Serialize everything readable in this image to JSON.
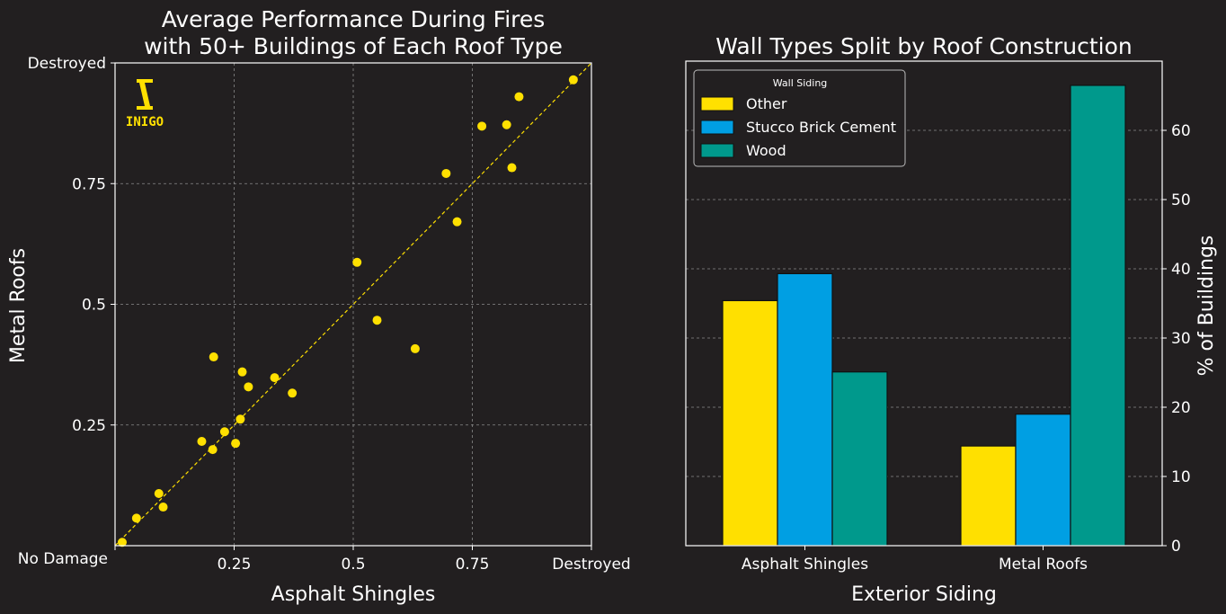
{
  "brand": {
    "logo_text": "INIGO",
    "accent": "#ffe000"
  },
  "chart_data": [
    {
      "type": "scatter",
      "title_lines": [
        "Average Performance During Fires",
        "with 50+ Buildings of Each Roof Type"
      ],
      "xlabel": "Asphalt Shingles",
      "ylabel": "Metal Roofs",
      "xlim": [
        0,
        1
      ],
      "ylim": [
        0,
        1
      ],
      "x_ticks": [
        {
          "value": 0,
          "label": "No Damage"
        },
        {
          "value": 0.25,
          "label": "0.25"
        },
        {
          "value": 0.5,
          "label": "0.5"
        },
        {
          "value": 0.75,
          "label": "0.75"
        },
        {
          "value": 1,
          "label": "Destroyed"
        }
      ],
      "y_ticks": [
        {
          "value": 0.25,
          "label": "0.25"
        },
        {
          "value": 0.5,
          "label": "0.5"
        },
        {
          "value": 0.75,
          "label": "0.75"
        },
        {
          "value": 1,
          "label": "Destroyed"
        }
      ],
      "grid": true,
      "reference_line": "y = x",
      "point_color": "#ffe000",
      "points": [
        {
          "x": 0.015,
          "y": 0.007
        },
        {
          "x": 0.045,
          "y": 0.057
        },
        {
          "x": 0.092,
          "y": 0.108
        },
        {
          "x": 0.101,
          "y": 0.08
        },
        {
          "x": 0.182,
          "y": 0.216
        },
        {
          "x": 0.205,
          "y": 0.199
        },
        {
          "x": 0.207,
          "y": 0.391
        },
        {
          "x": 0.23,
          "y": 0.236
        },
        {
          "x": 0.253,
          "y": 0.212
        },
        {
          "x": 0.263,
          "y": 0.262
        },
        {
          "x": 0.267,
          "y": 0.36
        },
        {
          "x": 0.28,
          "y": 0.329
        },
        {
          "x": 0.335,
          "y": 0.348
        },
        {
          "x": 0.372,
          "y": 0.316
        },
        {
          "x": 0.508,
          "y": 0.587
        },
        {
          "x": 0.55,
          "y": 0.467
        },
        {
          "x": 0.63,
          "y": 0.408
        },
        {
          "x": 0.695,
          "y": 0.771
        },
        {
          "x": 0.718,
          "y": 0.671
        },
        {
          "x": 0.77,
          "y": 0.869
        },
        {
          "x": 0.822,
          "y": 0.872
        },
        {
          "x": 0.833,
          "y": 0.783
        },
        {
          "x": 0.848,
          "y": 0.93
        },
        {
          "x": 0.962,
          "y": 0.965
        }
      ]
    },
    {
      "type": "bar",
      "title": "Wall Types Split by Roof Construction",
      "xlabel": "Exterior Siding",
      "ylabel": "% of Buildings",
      "categories": [
        "Asphalt Shingles",
        "Metal Roofs"
      ],
      "ylim": [
        0,
        70
      ],
      "y_ticks": [
        0,
        10,
        20,
        30,
        40,
        50,
        60
      ],
      "grid": true,
      "legend": {
        "title": "Wall Siding",
        "position": "top-left"
      },
      "series": [
        {
          "name": "Other",
          "color": "#ffe000",
          "values": [
            35.4,
            14.4
          ]
        },
        {
          "name": "Stucco Brick Cement",
          "color": "#009fe3",
          "values": [
            39.3,
            19.0
          ]
        },
        {
          "name": "Wood",
          "color": "#00998c",
          "values": [
            25.1,
            66.5
          ]
        }
      ]
    }
  ]
}
